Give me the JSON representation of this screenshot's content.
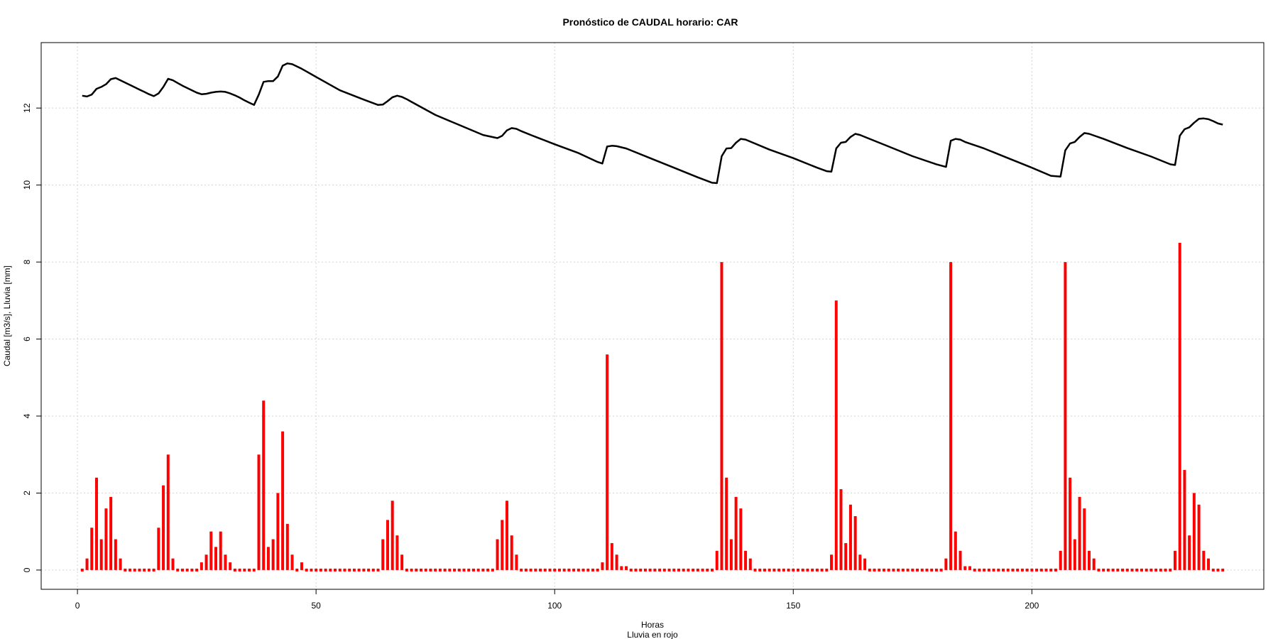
{
  "chart_data": {
    "type": "line",
    "title": "Pronóstico de CAUDAL horario: CAR",
    "xlabel": "Horas",
    "xlabel_sub": "Lluvia en rojo",
    "ylabel": "Caudal [m3/s], Lluvia [mm]",
    "xlim": [
      -7.6,
      248.6
    ],
    "ylim": [
      -0.5,
      13.7
    ],
    "x_ticks": [
      0,
      50,
      100,
      150,
      200
    ],
    "y_ticks": [
      0,
      2,
      4,
      6,
      8,
      10,
      12
    ],
    "grid": true,
    "colors": {
      "caudal": "#000000",
      "lluvia": "#ff0000",
      "grid": "#d3d3d3"
    },
    "series": [
      {
        "type": "line",
        "points": [
          [
            1,
            12.32
          ],
          [
            2,
            12.3
          ],
          [
            3,
            12.35
          ],
          [
            4,
            12.5
          ],
          [
            5,
            12.55
          ],
          [
            6,
            12.62
          ],
          [
            7,
            12.75
          ],
          [
            8,
            12.78
          ],
          [
            9,
            12.72
          ],
          [
            10,
            12.66
          ],
          [
            11,
            12.6
          ],
          [
            12,
            12.54
          ],
          [
            13,
            12.48
          ],
          [
            14,
            12.42
          ],
          [
            15,
            12.36
          ],
          [
            16,
            12.31
          ],
          [
            17,
            12.38
          ],
          [
            18,
            12.55
          ],
          [
            19,
            12.76
          ],
          [
            20,
            12.72
          ],
          [
            21,
            12.65
          ],
          [
            22,
            12.58
          ],
          [
            23,
            12.52
          ],
          [
            24,
            12.46
          ],
          [
            25,
            12.4
          ],
          [
            26,
            12.36
          ],
          [
            27,
            12.37
          ],
          [
            28,
            12.4
          ],
          [
            29,
            12.42
          ],
          [
            30,
            12.43
          ],
          [
            31,
            12.42
          ],
          [
            32,
            12.38
          ],
          [
            33,
            12.33
          ],
          [
            34,
            12.27
          ],
          [
            35,
            12.2
          ],
          [
            36,
            12.14
          ],
          [
            37,
            12.08
          ],
          [
            38,
            12.35
          ],
          [
            39,
            12.68
          ],
          [
            40,
            12.7
          ],
          [
            41,
            12.7
          ],
          [
            42,
            12.82
          ],
          [
            43,
            13.1
          ],
          [
            44,
            13.16
          ],
          [
            45,
            13.14
          ],
          [
            46,
            13.08
          ],
          [
            47,
            13.02
          ],
          [
            48,
            12.95
          ],
          [
            49,
            12.88
          ],
          [
            50,
            12.81
          ],
          [
            55,
            12.46
          ],
          [
            60,
            12.22
          ],
          [
            63,
            12.08
          ],
          [
            64,
            12.09
          ],
          [
            65,
            12.18
          ],
          [
            66,
            12.28
          ],
          [
            67,
            12.32
          ],
          [
            68,
            12.29
          ],
          [
            69,
            12.23
          ],
          [
            70,
            12.16
          ],
          [
            75,
            11.82
          ],
          [
            80,
            11.56
          ],
          [
            85,
            11.3
          ],
          [
            88,
            11.22
          ],
          [
            89,
            11.28
          ],
          [
            90,
            11.42
          ],
          [
            91,
            11.48
          ],
          [
            92,
            11.46
          ],
          [
            93,
            11.4
          ],
          [
            95,
            11.3
          ],
          [
            100,
            11.06
          ],
          [
            105,
            10.83
          ],
          [
            109,
            10.6
          ],
          [
            110,
            10.56
          ],
          [
            111,
            11.0
          ],
          [
            112,
            11.02
          ],
          [
            113,
            11.01
          ],
          [
            114,
            10.98
          ],
          [
            115,
            10.95
          ],
          [
            120,
            10.7
          ],
          [
            125,
            10.45
          ],
          [
            130,
            10.2
          ],
          [
            133,
            10.06
          ],
          [
            134,
            10.05
          ],
          [
            135,
            10.75
          ],
          [
            136,
            10.95
          ],
          [
            137,
            10.96
          ],
          [
            138,
            11.1
          ],
          [
            139,
            11.2
          ],
          [
            140,
            11.18
          ],
          [
            145,
            10.92
          ],
          [
            150,
            10.7
          ],
          [
            155,
            10.45
          ],
          [
            157,
            10.36
          ],
          [
            158,
            10.35
          ],
          [
            159,
            10.95
          ],
          [
            160,
            11.1
          ],
          [
            161,
            11.12
          ],
          [
            162,
            11.25
          ],
          [
            163,
            11.33
          ],
          [
            164,
            11.3
          ],
          [
            165,
            11.25
          ],
          [
            170,
            11.0
          ],
          [
            175,
            10.75
          ],
          [
            180,
            10.54
          ],
          [
            182,
            10.47
          ],
          [
            183,
            11.15
          ],
          [
            184,
            11.2
          ],
          [
            185,
            11.18
          ],
          [
            186,
            11.12
          ],
          [
            190,
            10.95
          ],
          [
            195,
            10.7
          ],
          [
            200,
            10.45
          ],
          [
            204,
            10.24
          ],
          [
            206,
            10.22
          ],
          [
            207,
            10.9
          ],
          [
            208,
            11.08
          ],
          [
            209,
            11.12
          ],
          [
            210,
            11.25
          ],
          [
            211,
            11.35
          ],
          [
            212,
            11.33
          ],
          [
            215,
            11.2
          ],
          [
            220,
            10.96
          ],
          [
            225,
            10.74
          ],
          [
            229,
            10.54
          ],
          [
            230,
            10.52
          ],
          [
            231,
            11.28
          ],
          [
            232,
            11.45
          ],
          [
            233,
            11.5
          ],
          [
            234,
            11.62
          ],
          [
            235,
            11.72
          ],
          [
            236,
            11.73
          ],
          [
            237,
            11.71
          ],
          [
            238,
            11.66
          ],
          [
            239,
            11.6
          ],
          [
            240,
            11.57
          ]
        ]
      },
      {
        "type": "bar",
        "x": [
          1,
          2,
          3,
          4,
          5,
          6,
          7,
          8,
          9,
          10,
          11,
          12,
          13,
          14,
          15,
          16,
          17,
          18,
          19,
          20,
          21,
          22,
          23,
          24,
          25,
          26,
          27,
          28,
          29,
          30,
          31,
          32,
          33,
          34,
          35,
          36,
          37,
          38,
          39,
          40,
          41,
          42,
          43,
          44,
          45,
          46,
          47,
          48,
          49,
          50,
          51,
          52,
          53,
          54,
          55,
          56,
          57,
          58,
          59,
          60,
          61,
          62,
          63,
          64,
          65,
          66,
          67,
          68,
          69,
          70,
          71,
          72,
          73,
          74,
          75,
          76,
          77,
          78,
          79,
          80,
          81,
          82,
          83,
          84,
          85,
          86,
          87,
          88,
          89,
          90,
          91,
          92,
          93,
          94,
          95,
          96,
          97,
          98,
          99,
          100,
          101,
          102,
          103,
          104,
          105,
          106,
          107,
          108,
          109,
          110,
          111,
          112,
          113,
          114,
          115,
          116,
          117,
          118,
          119,
          120,
          121,
          122,
          123,
          124,
          125,
          126,
          127,
          128,
          129,
          130,
          131,
          132,
          133,
          134,
          135,
          136,
          137,
          138,
          139,
          140,
          141,
          142,
          143,
          144,
          145,
          146,
          147,
          148,
          149,
          150,
          151,
          152,
          153,
          154,
          155,
          156,
          157,
          158,
          159,
          160,
          161,
          162,
          163,
          164,
          165,
          166,
          167,
          168,
          169,
          170,
          171,
          172,
          173,
          174,
          175,
          176,
          177,
          178,
          179,
          180,
          181,
          182,
          183,
          184,
          185,
          186,
          187,
          188,
          189,
          190,
          191,
          192,
          193,
          194,
          195,
          196,
          197,
          198,
          199,
          200,
          201,
          202,
          203,
          204,
          205,
          206,
          207,
          208,
          209,
          210,
          211,
          212,
          213,
          214,
          215,
          216,
          217,
          218,
          219,
          220,
          221,
          222,
          223,
          224,
          225,
          226,
          227,
          228,
          229,
          230,
          231,
          232,
          233,
          234,
          235,
          236,
          237,
          238,
          239,
          240
        ],
        "values": [
          0,
          0.3,
          1.1,
          2.4,
          0.8,
          1.6,
          1.9,
          0.8,
          0.3,
          0,
          0,
          0,
          0,
          0,
          0,
          0,
          1.1,
          2.2,
          3.0,
          0.3,
          0,
          0,
          0,
          0,
          0,
          0.2,
          0.4,
          1.0,
          0.6,
          1.0,
          0.4,
          0.2,
          0,
          0,
          0,
          0,
          0,
          3.0,
          4.4,
          0.6,
          0.8,
          2.0,
          3.6,
          1.2,
          0.4,
          0,
          0.2,
          0,
          0,
          0,
          0,
          0,
          0,
          0,
          0,
          0,
          0,
          0,
          0,
          0,
          0,
          0,
          0,
          0.8,
          1.3,
          1.8,
          0.9,
          0.4,
          0,
          0,
          0,
          0,
          0,
          0,
          0,
          0,
          0,
          0,
          0,
          0,
          0,
          0,
          0,
          0,
          0,
          0,
          0,
          0.8,
          1.3,
          1.8,
          0.9,
          0.4,
          0,
          0,
          0,
          0,
          0,
          0,
          0,
          0,
          0,
          0,
          0,
          0,
          0,
          0,
          0,
          0,
          0,
          0.2,
          5.6,
          0.7,
          0.4,
          0.1,
          0.1,
          0,
          0,
          0,
          0,
          0,
          0,
          0,
          0,
          0,
          0,
          0,
          0,
          0,
          0,
          0,
          0,
          0,
          0,
          0.5,
          8.0,
          2.4,
          0.8,
          1.9,
          1.6,
          0.5,
          0.3,
          0,
          0,
          0,
          0,
          0,
          0,
          0,
          0,
          0,
          0,
          0,
          0,
          0,
          0,
          0,
          0,
          0.4,
          7.0,
          2.1,
          0.7,
          1.7,
          1.4,
          0.4,
          0.3,
          0,
          0,
          0,
          0,
          0,
          0,
          0,
          0,
          0,
          0,
          0,
          0,
          0,
          0,
          0,
          0,
          0.3,
          8.0,
          1.0,
          0.5,
          0.1,
          0.1,
          0,
          0,
          0,
          0,
          0,
          0,
          0,
          0,
          0,
          0,
          0,
          0,
          0,
          0,
          0,
          0,
          0,
          0,
          0.5,
          8.0,
          2.4,
          0.8,
          1.9,
          1.6,
          0.5,
          0.3,
          0,
          0,
          0,
          0,
          0,
          0,
          0,
          0,
          0,
          0,
          0,
          0,
          0,
          0,
          0,
          0,
          0.5,
          8.5,
          2.6,
          0.9,
          2.0,
          1.7,
          0.5,
          0.3,
          0,
          0,
          0
        ]
      }
    ]
  }
}
